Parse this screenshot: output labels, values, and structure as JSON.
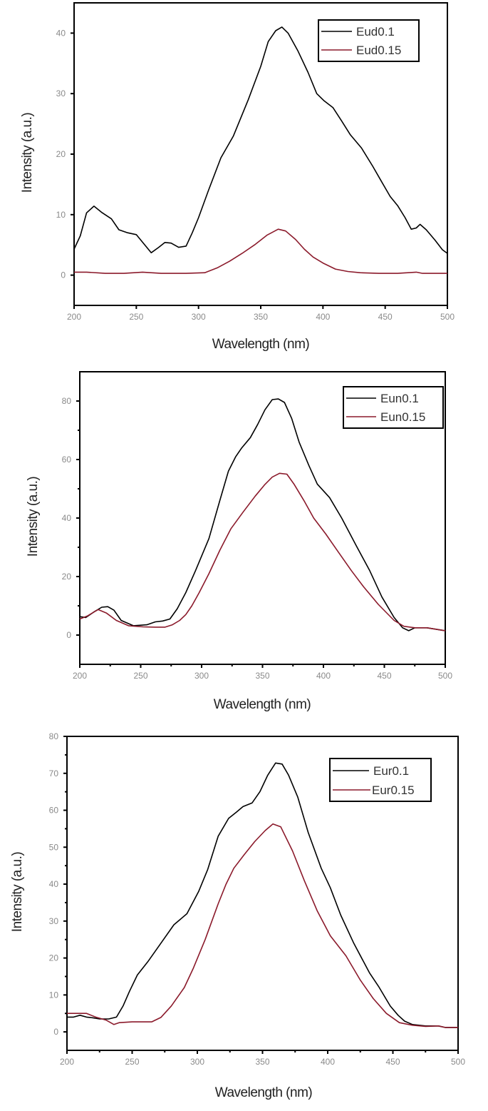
{
  "chart_data": [
    {
      "type": "line",
      "title": "",
      "xlabel": "Wavelength (nm)",
      "ylabel": "Intensity (a.u.)",
      "xlim": [
        200,
        500
      ],
      "ylim": [
        -5,
        45
      ],
      "xticks": [
        200,
        250,
        300,
        350,
        400,
        450,
        500
      ],
      "yticks": [
        0,
        10,
        20,
        30,
        40
      ],
      "grid": false,
      "legend_position": "upper right",
      "series": [
        {
          "name": "Eud0.1",
          "color": "#000000",
          "x": [
            200,
            205,
            210,
            216,
            222,
            230,
            236,
            243,
            250,
            256,
            262,
            268,
            273,
            278,
            284,
            290,
            295,
            300,
            308,
            318,
            328,
            340,
            350,
            356,
            362,
            367,
            372,
            380,
            388,
            395,
            401,
            408,
            415,
            422,
            431,
            440,
            447,
            454,
            460,
            466,
            471,
            475,
            478,
            483,
            490,
            496,
            500
          ],
          "y": [
            4.3,
            6.5,
            10.3,
            11.4,
            10.4,
            9.3,
            7.5,
            7.0,
            6.7,
            5.2,
            3.7,
            4.6,
            5.4,
            5.3,
            4.6,
            4.8,
            7.0,
            9.5,
            14,
            19.4,
            23,
            29,
            34.5,
            38.6,
            40.4,
            41.0,
            40.0,
            37,
            33.5,
            30,
            28.8,
            27.7,
            25.5,
            23.2,
            21,
            18,
            15.5,
            13,
            11.5,
            9.5,
            7.6,
            7.8,
            8.4,
            7.5,
            5.8,
            4.2,
            3.6
          ]
        },
        {
          "name": "Eud0.15",
          "color": "#8b1a2b",
          "x": [
            200,
            210,
            225,
            240,
            255,
            270,
            290,
            305,
            315,
            325,
            335,
            345,
            355,
            364,
            370,
            378,
            385,
            392,
            400,
            410,
            420,
            430,
            445,
            460,
            475,
            480,
            490,
            500
          ],
          "y": [
            0.5,
            0.5,
            0.3,
            0.3,
            0.5,
            0.3,
            0.3,
            0.4,
            1.2,
            2.3,
            3.6,
            5.0,
            6.6,
            7.6,
            7.3,
            5.9,
            4.3,
            3.0,
            2.0,
            1.0,
            0.6,
            0.4,
            0.3,
            0.3,
            0.5,
            0.3,
            0.3,
            0.3
          ]
        }
      ]
    },
    {
      "type": "line",
      "title": "",
      "xlabel": "Wavelength (nm)",
      "ylabel": "Intensity (a.u.)",
      "xlim": [
        200,
        500
      ],
      "ylim": [
        -10,
        90
      ],
      "xticks": [
        200,
        250,
        300,
        350,
        400,
        450,
        500
      ],
      "yticks": [
        0,
        20,
        40,
        60,
        80
      ],
      "grid": false,
      "legend_position": "upper right",
      "series": [
        {
          "name": "Eun0.1",
          "color": "#000000",
          "x": [
            200,
            205,
            212,
            218,
            223,
            228,
            234,
            244,
            255,
            262,
            268,
            274,
            280,
            287,
            295,
            306,
            315,
            322,
            328,
            333,
            340,
            346,
            352,
            358,
            363,
            368,
            374,
            380,
            388,
            395,
            405,
            415,
            427,
            438,
            448,
            458,
            465,
            470,
            475,
            485,
            500
          ],
          "y": [
            6.3,
            6.0,
            8.0,
            9.5,
            9.7,
            8.5,
            5.0,
            3.2,
            3.5,
            4.5,
            4.8,
            5.5,
            9.0,
            14.5,
            22,
            33,
            46,
            56,
            61,
            64,
            67.5,
            72,
            77,
            80.5,
            80.7,
            79.5,
            74,
            66,
            58,
            51.6,
            47,
            40,
            30.5,
            22,
            13,
            6,
            2.5,
            1.5,
            2.5,
            2.5,
            1.5
          ]
        },
        {
          "name": "Eun0.15",
          "color": "#8b1a2b",
          "x": [
            200,
            206,
            215,
            222,
            230,
            240,
            252,
            262,
            270,
            276,
            282,
            287,
            292,
            298,
            306,
            315,
            324,
            334,
            344,
            352,
            358,
            364,
            370,
            376,
            384,
            392,
            402,
            412,
            423,
            433,
            445,
            458,
            466,
            475,
            485,
            500
          ],
          "y": [
            5.5,
            6.5,
            8.7,
            7.5,
            5.0,
            3.2,
            2.8,
            2.7,
            2.7,
            3.5,
            5.0,
            7.0,
            10.0,
            14.5,
            21,
            29,
            36.3,
            42,
            47.5,
            51.5,
            54,
            55.3,
            55,
            51.5,
            46,
            40,
            34.5,
            28.5,
            22,
            16.5,
            10.5,
            5.0,
            3.0,
            2.5,
            2.5,
            1.5
          ]
        }
      ]
    },
    {
      "type": "line",
      "title": "",
      "xlabel": "Wavelength (nm)",
      "ylabel": "Intensity (a.u.)",
      "xlim": [
        200,
        500
      ],
      "ylim": [
        -5,
        80
      ],
      "xticks": [
        200,
        250,
        300,
        350,
        400,
        450,
        500
      ],
      "yticks": [
        0,
        10,
        20,
        30,
        40,
        50,
        60,
        70,
        80
      ],
      "grid": false,
      "legend_position": "upper right",
      "series": [
        {
          "name": "Eur0.1",
          "color": "#000000",
          "x": [
            200,
            205,
            210,
            215,
            220,
            225,
            232,
            238,
            243,
            248,
            254,
            262,
            272,
            282,
            292,
            301,
            308,
            316,
            324,
            330,
            335,
            342,
            348,
            354,
            360,
            365,
            370,
            377,
            385,
            395,
            402,
            410,
            420,
            432,
            439,
            448,
            454,
            459,
            465,
            475,
            485,
            490,
            500
          ],
          "y": [
            4.0,
            4.0,
            4.5,
            4.0,
            3.8,
            3.5,
            3.5,
            4.0,
            7.0,
            11,
            15.4,
            19,
            24,
            29,
            32,
            38,
            44,
            53,
            57.8,
            59.5,
            61,
            62,
            65,
            69.5,
            72.8,
            72.5,
            69.5,
            63.6,
            54,
            44.3,
            39,
            31.6,
            24,
            16,
            12.3,
            7,
            4.5,
            2.9,
            2.0,
            1.6,
            1.6,
            1.2,
            1.2
          ]
        },
        {
          "name": "Eur0.15",
          "color": "#8b1a2b",
          "x": [
            200,
            210,
            215,
            222,
            230,
            236,
            240,
            250,
            260,
            265,
            272,
            280,
            290,
            297,
            306,
            316,
            322,
            328,
            336,
            344,
            352,
            358,
            364,
            373,
            382,
            392,
            402,
            414,
            425,
            435,
            445,
            455,
            465,
            475,
            485,
            490,
            500
          ],
          "y": [
            5.0,
            5.0,
            5.0,
            4.0,
            3.2,
            2.0,
            2.5,
            2.7,
            2.7,
            2.7,
            3.9,
            7.0,
            12,
            17.3,
            25,
            34.7,
            40,
            44.3,
            48,
            51.5,
            54.5,
            56.3,
            55.5,
            49,
            41,
            32.7,
            26,
            20.6,
            14,
            9,
            5,
            2.5,
            1.8,
            1.5,
            1.6,
            1.2,
            1.2
          ]
        }
      ]
    }
  ],
  "charts": [
    {
      "legend": {
        "items": [
          "Eud0.1",
          "Eud0.15"
        ]
      },
      "xlabel": "Wavelength (nm)",
      "ylabel": "Intensity (a.u.)",
      "xtick_labels": [
        "200",
        "250",
        "300",
        "350",
        "400",
        "450",
        "500"
      ],
      "ytick_labels": [
        "0",
        "10",
        "20",
        "30",
        "40"
      ]
    },
    {
      "legend": {
        "items": [
          "Eun0.1",
          "Eun0.15"
        ]
      },
      "xlabel": "Wavelength (nm)",
      "ylabel": "Intensity (a.u.)",
      "xtick_labels": [
        "200",
        "250",
        "300",
        "350",
        "400",
        "450",
        "500"
      ],
      "ytick_labels": [
        "0",
        "20",
        "40",
        "60",
        "80"
      ]
    },
    {
      "legend": {
        "items": [
          "Eur0.1",
          "Eur0.15"
        ]
      },
      "xlabel": "Wavelength (nm)",
      "ylabel": "Intensity (a.u.)",
      "xtick_labels": [
        "200",
        "250",
        "300",
        "350",
        "400",
        "450",
        "500"
      ],
      "ytick_labels": [
        "0",
        "10",
        "20",
        "30",
        "40",
        "50",
        "60",
        "70",
        "80"
      ]
    }
  ]
}
